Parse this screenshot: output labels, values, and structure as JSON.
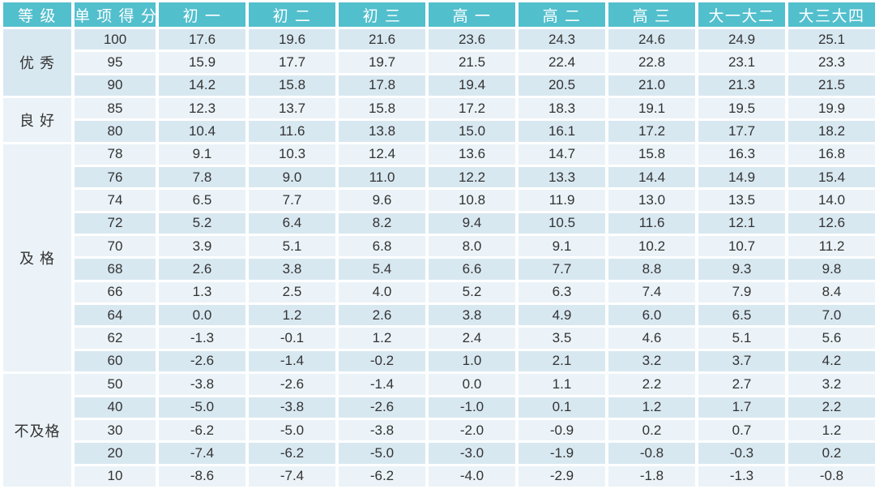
{
  "meta": {
    "accent_color": "#52BFCD",
    "header_text_color": "#FFFFFF",
    "row_dark_color": "#D8E8F1",
    "row_light_color": "#EBF3F8",
    "category_cell_color": "#E6EEF5",
    "grid_line_color": "#FFFFFF",
    "body_text_color": "#333333"
  },
  "chart_data": {
    "type": "table",
    "columns": [
      "等 级",
      "单 项 得 分",
      "初 一",
      "初 二",
      "初 三",
      "高 一",
      "高 二",
      "高 三",
      "大一大二",
      "大三大四"
    ],
    "groups": [
      {
        "label": "优 秀",
        "rows": [
          {
            "score": "100",
            "values": [
              "17.6",
              "19.6",
              "21.6",
              "23.6",
              "24.3",
              "24.6",
              "24.9",
              "25.1"
            ]
          },
          {
            "score": "95",
            "values": [
              "15.9",
              "17.7",
              "19.7",
              "21.5",
              "22.4",
              "22.8",
              "23.1",
              "23.3"
            ]
          },
          {
            "score": "90",
            "values": [
              "14.2",
              "15.8",
              "17.8",
              "19.4",
              "20.5",
              "21.0",
              "21.3",
              "21.5"
            ]
          }
        ]
      },
      {
        "label": "良 好",
        "rows": [
          {
            "score": "85",
            "values": [
              "12.3",
              "13.7",
              "15.8",
              "17.2",
              "18.3",
              "19.1",
              "19.5",
              "19.9"
            ]
          },
          {
            "score": "80",
            "values": [
              "10.4",
              "11.6",
              "13.8",
              "15.0",
              "16.1",
              "17.2",
              "17.7",
              "18.2"
            ]
          }
        ]
      },
      {
        "label": "及 格",
        "rows": [
          {
            "score": "78",
            "values": [
              "9.1",
              "10.3",
              "12.4",
              "13.6",
              "14.7",
              "15.8",
              "16.3",
              "16.8"
            ]
          },
          {
            "score": "76",
            "values": [
              "7.8",
              "9.0",
              "11.0",
              "12.2",
              "13.3",
              "14.4",
              "14.9",
              "15.4"
            ]
          },
          {
            "score": "74",
            "values": [
              "6.5",
              "7.7",
              "9.6",
              "10.8",
              "11.9",
              "13.0",
              "13.5",
              "14.0"
            ]
          },
          {
            "score": "72",
            "values": [
              "5.2",
              "6.4",
              "8.2",
              "9.4",
              "10.5",
              "11.6",
              "12.1",
              "12.6"
            ]
          },
          {
            "score": "70",
            "values": [
              "3.9",
              "5.1",
              "6.8",
              "8.0",
              "9.1",
              "10.2",
              "10.7",
              "11.2"
            ]
          },
          {
            "score": "68",
            "values": [
              "2.6",
              "3.8",
              "5.4",
              "6.6",
              "7.7",
              "8.8",
              "9.3",
              "9.8"
            ]
          },
          {
            "score": "66",
            "values": [
              "1.3",
              "2.5",
              "4.0",
              "5.2",
              "6.3",
              "7.4",
              "7.9",
              "8.4"
            ]
          },
          {
            "score": "64",
            "values": [
              "0.0",
              "1.2",
              "2.6",
              "3.8",
              "4.9",
              "6.0",
              "6.5",
              "7.0"
            ]
          },
          {
            "score": "62",
            "values": [
              "-1.3",
              "-0.1",
              "1.2",
              "2.4",
              "3.5",
              "4.6",
              "5.1",
              "5.6"
            ]
          },
          {
            "score": "60",
            "values": [
              "-2.6",
              "-1.4",
              "-0.2",
              "1.0",
              "2.1",
              "3.2",
              "3.7",
              "4.2"
            ]
          }
        ]
      },
      {
        "label": "不及格",
        "rows": [
          {
            "score": "50",
            "values": [
              "-3.8",
              "-2.6",
              "-1.4",
              "0.0",
              "1.1",
              "2.2",
              "2.7",
              "3.2"
            ]
          },
          {
            "score": "40",
            "values": [
              "-5.0",
              "-3.8",
              "-2.6",
              "-1.0",
              "0.1",
              "1.2",
              "1.7",
              "2.2"
            ]
          },
          {
            "score": "30",
            "values": [
              "-6.2",
              "-5.0",
              "-3.8",
              "-2.0",
              "-0.9",
              "0.2",
              "0.7",
              "1.2"
            ]
          },
          {
            "score": "20",
            "values": [
              "-7.4",
              "-6.2",
              "-5.0",
              "-3.0",
              "-1.9",
              "-0.8",
              "-0.3",
              "0.2"
            ]
          },
          {
            "score": "10",
            "values": [
              "-8.6",
              "-7.4",
              "-6.2",
              "-4.0",
              "-2.9",
              "-1.8",
              "-1.3",
              "-0.8"
            ]
          }
        ]
      }
    ]
  }
}
